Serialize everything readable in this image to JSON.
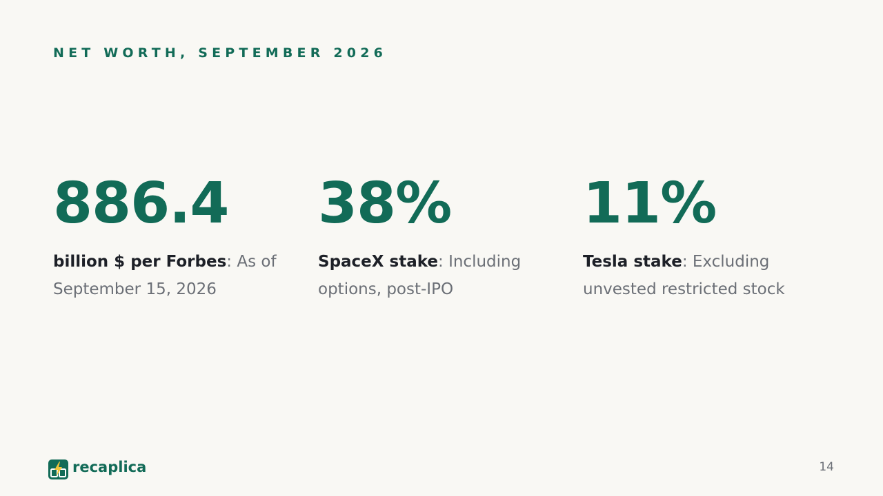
{
  "slide": {
    "eyebrow": "NET WORTH, SEPTEMBER 2026",
    "stats": [
      {
        "value": "886.4",
        "label": "billion $ per Forbes",
        "separator": ":",
        "detail": " As of September 15, 2026"
      },
      {
        "value": "38%",
        "label": "SpaceX stake",
        "separator": ":",
        "detail": " Including options, post-IPO"
      },
      {
        "value": "11%",
        "label": "Tesla stake",
        "separator": ":",
        "detail": " Excluding unvested restricted stock"
      }
    ],
    "page_number": "14"
  },
  "footer": {
    "brand": "recaplica",
    "logo_icon": "lightning-book-icon"
  },
  "colors": {
    "background": "#f9f8f4",
    "accent": "#126b57",
    "text_strong": "#1d2027",
    "text_muted": "#6b6f76",
    "logo_bolt": "#f3c53a"
  }
}
